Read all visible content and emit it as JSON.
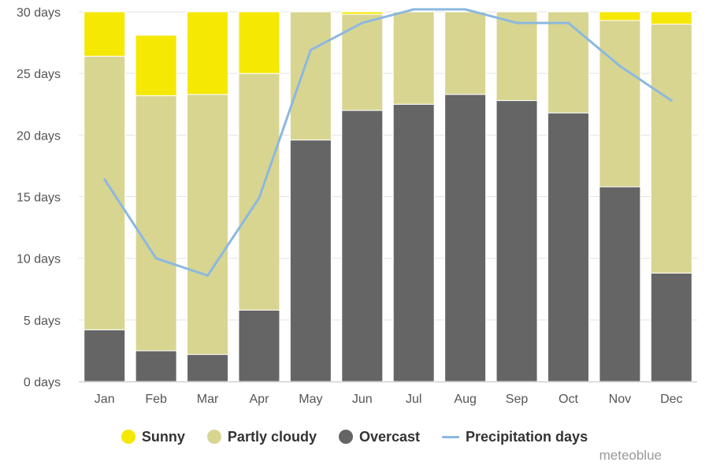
{
  "chart_data": {
    "type": "bar",
    "stacked": true,
    "categories": [
      "Jan",
      "Feb",
      "Mar",
      "Apr",
      "May",
      "Jun",
      "Jul",
      "Aug",
      "Sep",
      "Oct",
      "Nov",
      "Dec"
    ],
    "ylim": [
      0,
      30
    ],
    "yticks": [
      {
        "value": 0,
        "label": "0 days"
      },
      {
        "value": 5,
        "label": "5 days"
      },
      {
        "value": 10,
        "label": "10 days"
      },
      {
        "value": 15,
        "label": "15 days"
      },
      {
        "value": 20,
        "label": "20 days"
      },
      {
        "value": 25,
        "label": "25 days"
      },
      {
        "value": 30,
        "label": "30 days"
      }
    ],
    "grid": true,
    "legend_position": "bottom",
    "series": [
      {
        "name": "Overcast",
        "kind": "bar",
        "color": "#656565",
        "values": [
          4.2,
          2.5,
          2.2,
          5.8,
          19.6,
          22.0,
          22.5,
          23.3,
          22.8,
          21.8,
          15.8,
          8.8
        ]
      },
      {
        "name": "Partly cloudy",
        "kind": "bar",
        "color": "#d8d591",
        "values": [
          22.2,
          20.7,
          21.1,
          19.2,
          10.4,
          7.8,
          7.5,
          6.7,
          7.2,
          8.2,
          13.5,
          20.2
        ]
      },
      {
        "name": "Sunny",
        "kind": "bar",
        "color": "#f5e802",
        "values": [
          3.6,
          4.9,
          6.7,
          5.0,
          0.0,
          0.2,
          0.0,
          0.0,
          0.0,
          0.0,
          0.7,
          1.0
        ]
      },
      {
        "name": "Precipitation days",
        "kind": "line",
        "color": "#8cb8e0",
        "values": [
          16.4,
          10.0,
          8.6,
          14.9,
          26.9,
          29.1,
          30.2,
          30.2,
          29.1,
          29.1,
          25.6,
          22.8
        ]
      }
    ],
    "legend": [
      {
        "name": "Sunny",
        "shape": "dot",
        "color": "#f5e802"
      },
      {
        "name": "Partly cloudy",
        "shape": "dot",
        "color": "#d8d591"
      },
      {
        "name": "Overcast",
        "shape": "dot",
        "color": "#656565"
      },
      {
        "name": "Precipitation days",
        "shape": "line",
        "color": "#8cb8e0"
      }
    ]
  },
  "credit": "meteoblue"
}
